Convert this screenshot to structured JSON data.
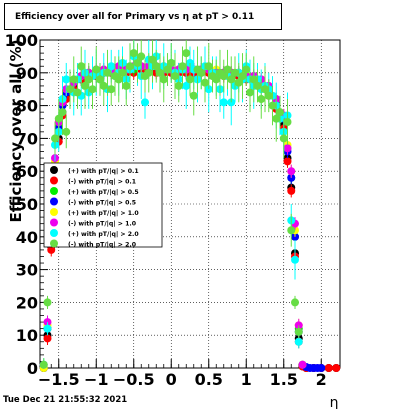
{
  "title": "Efficiency over all for Primary vs   η at pT > 0.11",
  "timestamp": "Tue Dec 21 21:55:32 2021",
  "chart_data": {
    "type": "scatter",
    "title": "Efficiency over all for Primary vs   η at pT > 0.11",
    "xlabel": "η",
    "ylabel": "Efficiency over all (%)",
    "xlim": [
      -1.75,
      2.25
    ],
    "ylim": [
      0,
      100
    ],
    "x_ticks": [
      -1.5,
      -1,
      -0.5,
      0,
      0.5,
      1,
      1.5,
      2
    ],
    "x_tick_labels": [
      "−1.5",
      "−1",
      "−0.5",
      "0",
      "0.5",
      "1",
      "1.5",
      "2"
    ],
    "y_ticks": [
      0,
      10,
      20,
      30,
      40,
      50,
      60,
      70,
      80,
      90,
      100
    ],
    "y_tick_labels": [
      "0",
      "10",
      "20",
      "30",
      "40",
      "50",
      "60",
      "70",
      "80",
      "90",
      "100"
    ],
    "grid": true,
    "legend_position": "middle-left",
    "series": [
      {
        "name": "(+) with pT/|q| > 0.1",
        "color": "#000000",
        "x": [
          -1.7,
          -1.65,
          -1.6,
          -1.55,
          -1.5,
          -1.45,
          -1.4,
          -1.3,
          -1.2,
          -1.1,
          -1.0,
          -0.9,
          -0.8,
          -0.7,
          -0.6,
          -0.5,
          -0.4,
          -0.3,
          -0.2,
          -0.1,
          0.0,
          0.1,
          0.2,
          0.3,
          0.4,
          0.5,
          0.6,
          0.7,
          0.8,
          0.9,
          1.0,
          1.1,
          1.2,
          1.3,
          1.4,
          1.5,
          1.55,
          1.6,
          1.65,
          1.7,
          1.75,
          1.8,
          1.9,
          2.0,
          2.1,
          2.2
        ],
        "y": [
          0,
          10,
          37,
          55,
          70,
          78,
          83,
          86,
          88,
          89,
          89,
          90,
          90,
          90,
          90,
          91,
          91,
          91,
          91,
          90,
          90,
          90,
          90,
          90,
          90,
          90,
          90,
          90,
          89,
          89,
          89,
          88,
          86,
          84,
          80,
          74,
          64,
          55,
          35,
          9,
          0.5,
          0,
          0,
          0,
          0,
          0
        ]
      },
      {
        "name": "(-) with pT/|q| > 0.1",
        "color": "#ff0000",
        "x": [
          -1.7,
          -1.65,
          -1.6,
          -1.55,
          -1.5,
          -1.45,
          -1.4,
          -1.3,
          -1.2,
          -1.1,
          -1.0,
          -0.9,
          -0.8,
          -0.7,
          -0.6,
          -0.5,
          -0.4,
          -0.3,
          -0.2,
          -0.1,
          0.0,
          0.1,
          0.2,
          0.3,
          0.4,
          0.5,
          0.6,
          0.7,
          0.8,
          0.9,
          1.0,
          1.1,
          1.2,
          1.3,
          1.4,
          1.5,
          1.55,
          1.6,
          1.65,
          1.7,
          1.75,
          1.8,
          1.9,
          2.0,
          2.1,
          2.2
        ],
        "y": [
          0,
          9,
          36,
          54,
          69,
          77,
          82,
          85,
          88,
          89,
          89,
          90,
          90,
          90,
          90,
          90,
          91,
          91,
          90,
          90,
          90,
          90,
          90,
          90,
          90,
          90,
          90,
          89,
          89,
          89,
          88,
          88,
          86,
          83,
          79,
          73,
          63,
          54,
          34,
          8,
          0.5,
          0,
          0,
          0,
          0,
          0
        ]
      },
      {
        "name": "(+) with pT/|q| > 0.5",
        "color": "#00ee00",
        "x": [
          -1.7,
          -1.65,
          -1.6,
          -1.55,
          -1.5,
          -1.45,
          -1.4,
          -1.3,
          -1.2,
          -1.1,
          -1.0,
          -0.9,
          -0.8,
          -0.7,
          -0.6,
          -0.5,
          -0.4,
          -0.3,
          -0.2,
          -0.1,
          0.0,
          0.1,
          0.2,
          0.3,
          0.4,
          0.5,
          0.6,
          0.7,
          0.8,
          0.9,
          1.0,
          1.1,
          1.2,
          1.3,
          1.4,
          1.5,
          1.55,
          1.6,
          1.65,
          1.7,
          1.75
        ],
        "y": [
          0,
          12,
          45,
          62,
          74,
          80,
          84,
          87,
          89,
          90,
          90,
          90,
          91,
          91,
          91,
          91,
          92,
          92,
          92,
          91,
          91,
          91,
          91,
          91,
          91,
          91,
          90,
          90,
          90,
          90,
          89,
          89,
          87,
          85,
          81,
          76,
          67,
          58,
          40,
          12,
          1
        ]
      },
      {
        "name": "(-) with pT/|q| > 0.5",
        "color": "#0000ff",
        "x": [
          -1.7,
          -1.65,
          -1.6,
          -1.55,
          -1.5,
          -1.45,
          -1.4,
          -1.3,
          -1.2,
          -1.1,
          -1.0,
          -0.9,
          -0.8,
          -0.7,
          -0.6,
          -0.5,
          -0.4,
          -0.3,
          -0.2,
          -0.1,
          0.0,
          0.1,
          0.2,
          0.3,
          0.4,
          0.5,
          0.6,
          0.7,
          0.8,
          0.9,
          1.0,
          1.1,
          1.2,
          1.3,
          1.4,
          1.5,
          1.55,
          1.6,
          1.65,
          1.7,
          1.75,
          1.8,
          1.85,
          1.9,
          1.95,
          2.0
        ],
        "y": [
          0,
          12,
          44,
          61,
          73,
          80,
          84,
          87,
          89,
          90,
          90,
          90,
          91,
          91,
          91,
          92,
          92,
          92,
          92,
          92,
          91,
          91,
          91,
          91,
          91,
          91,
          90,
          90,
          90,
          90,
          89,
          89,
          87,
          85,
          81,
          76,
          66,
          58,
          40,
          11,
          1,
          0.3,
          0,
          0,
          0,
          0
        ]
      },
      {
        "name": "(+) with pT/|q| > 1.0",
        "color": "#ffff00",
        "x": [
          -1.7,
          -1.65,
          -1.6,
          -1.55,
          -1.5,
          -1.45,
          -1.4,
          -1.3,
          -1.2,
          -1.1,
          -1.0,
          -0.9,
          -0.8,
          -0.7,
          -0.6,
          -0.5,
          -0.4,
          -0.3,
          -0.2,
          -0.1,
          0.0,
          0.1,
          0.2,
          0.3,
          0.4,
          0.5,
          0.6,
          0.7,
          0.8,
          0.9,
          1.0,
          1.1,
          1.2,
          1.3,
          1.4,
          1.5,
          1.55,
          1.6,
          1.65,
          1.7,
          1.75
        ],
        "y": [
          0,
          13,
          47,
          63,
          75,
          81,
          85,
          88,
          89,
          90,
          90,
          91,
          91,
          91,
          91,
          92,
          92,
          92,
          92,
          92,
          91,
          91,
          91,
          91,
          91,
          91,
          91,
          90,
          90,
          90,
          90,
          89,
          88,
          86,
          82,
          77,
          68,
          60,
          42,
          13,
          1
        ]
      },
      {
        "name": "(-) with pT/|q| > 1.0",
        "color": "#ee00ee",
        "x": [
          -1.7,
          -1.65,
          -1.6,
          -1.55,
          -1.5,
          -1.45,
          -1.4,
          -1.3,
          -1.2,
          -1.1,
          -1.0,
          -0.9,
          -0.8,
          -0.7,
          -0.6,
          -0.5,
          -0.4,
          -0.3,
          -0.2,
          -0.1,
          0.0,
          0.1,
          0.2,
          0.3,
          0.4,
          0.5,
          0.6,
          0.7,
          0.8,
          0.9,
          1.0,
          1.1,
          1.2,
          1.3,
          1.4,
          1.5,
          1.55,
          1.6,
          1.65,
          1.7,
          1.75
        ],
        "y": [
          1,
          14,
          48,
          64,
          75,
          81,
          85,
          87,
          89,
          90,
          91,
          91,
          91,
          92,
          91,
          92,
          92,
          92,
          92,
          91,
          91,
          91,
          91,
          91,
          91,
          91,
          90,
          90,
          90,
          90,
          89,
          89,
          88,
          86,
          82,
          77,
          67,
          60,
          44,
          13,
          1
        ]
      },
      {
        "name": "(+) with pT/|q| > 2.0",
        "color": "#00ffff",
        "x": [
          -1.7,
          -1.65,
          -1.6,
          -1.55,
          -1.5,
          -1.45,
          -1.4,
          -1.35,
          -1.3,
          -1.25,
          -1.2,
          -1.15,
          -1.1,
          -1.05,
          -1.0,
          -0.95,
          -0.9,
          -0.85,
          -0.8,
          -0.75,
          -0.7,
          -0.65,
          -0.6,
          -0.55,
          -0.5,
          -0.45,
          -0.4,
          -0.35,
          -0.3,
          -0.25,
          -0.2,
          -0.15,
          -0.1,
          -0.05,
          0.0,
          0.05,
          0.1,
          0.15,
          0.2,
          0.25,
          0.3,
          0.35,
          0.4,
          0.45,
          0.5,
          0.55,
          0.6,
          0.65,
          0.7,
          0.75,
          0.8,
          0.85,
          0.9,
          0.95,
          1.0,
          1.05,
          1.1,
          1.15,
          1.2,
          1.25,
          1.3,
          1.35,
          1.4,
          1.45,
          1.5,
          1.55,
          1.6,
          1.65,
          1.7
        ],
        "y": [
          1,
          12,
          50,
          68,
          72,
          82,
          88,
          85,
          84,
          88,
          83,
          90,
          84,
          89,
          90,
          88,
          90,
          85,
          92,
          89,
          90,
          93,
          88,
          91,
          95,
          92,
          89,
          81,
          94,
          92,
          95,
          90,
          92,
          91,
          93,
          90,
          88,
          91,
          86,
          93,
          91,
          88,
          90,
          92,
          85,
          90,
          89,
          85,
          81,
          89,
          81,
          86,
          90,
          88,
          92,
          88,
          86,
          88,
          85,
          86,
          85,
          83,
          80,
          76,
          72,
          77,
          45,
          33,
          8
        ]
      },
      {
        "name": "(-) with pT/|q| > 2.0",
        "color": "#66dd44",
        "x": [
          -1.7,
          -1.65,
          -1.6,
          -1.55,
          -1.5,
          -1.45,
          -1.4,
          -1.35,
          -1.3,
          -1.25,
          -1.2,
          -1.15,
          -1.1,
          -1.05,
          -1.0,
          -0.95,
          -0.9,
          -0.85,
          -0.8,
          -0.75,
          -0.7,
          -0.65,
          -0.6,
          -0.55,
          -0.5,
          -0.45,
          -0.4,
          -0.35,
          -0.3,
          -0.25,
          -0.2,
          -0.15,
          -0.1,
          -0.05,
          0.0,
          0.05,
          0.1,
          0.15,
          0.2,
          0.25,
          0.3,
          0.35,
          0.4,
          0.45,
          0.5,
          0.55,
          0.6,
          0.65,
          0.7,
          0.75,
          0.8,
          0.85,
          0.9,
          0.95,
          1.0,
          1.05,
          1.1,
          1.15,
          1.2,
          1.25,
          1.3,
          1.35,
          1.4,
          1.45,
          1.5,
          1.55,
          1.6,
          1.65,
          1.7
        ],
        "y": [
          1,
          20,
          55,
          70,
          76,
          78,
          72,
          85,
          88,
          84,
          92,
          86,
          88,
          85,
          91,
          88,
          86,
          90,
          85,
          89,
          88,
          90,
          86,
          92,
          96,
          93,
          95,
          89,
          90,
          94,
          92,
          90,
          88,
          91,
          93,
          89,
          86,
          92,
          96,
          88,
          83,
          91,
          90,
          87,
          92,
          89,
          88,
          90,
          89,
          91,
          88,
          90,
          87,
          89,
          91,
          84,
          88,
          86,
          82,
          85,
          83,
          80,
          76,
          78,
          70,
          75,
          42,
          20,
          11
        ]
      }
    ]
  }
}
